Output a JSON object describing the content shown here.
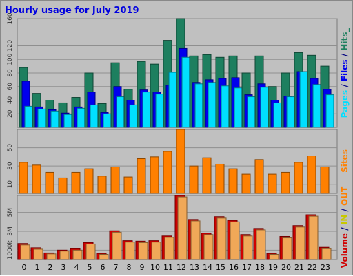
{
  "chart_data": [
    {
      "type": "bar",
      "title": "Hourly usage for July 2019",
      "categories": [
        "0",
        "1",
        "2",
        "3",
        "4",
        "5",
        "6",
        "7",
        "8",
        "9",
        "10",
        "11",
        "12",
        "13",
        "14",
        "15",
        "16",
        "17",
        "18",
        "19",
        "20",
        "21",
        "22",
        "23"
      ],
      "ylim": [
        0,
        160
      ],
      "yticks": [
        "20",
        "40",
        "60",
        "80",
        "100",
        "120",
        "160"
      ],
      "grid": true,
      "series": [
        {
          "name": "Hits",
          "color": "#1e7f5f",
          "values": [
            88,
            50,
            40,
            36,
            44,
            80,
            35,
            95,
            56,
            97,
            93,
            128,
            160,
            105,
            107,
            103,
            105,
            80,
            105,
            60,
            80,
            110,
            106,
            90
          ]
        },
        {
          "name": "Files",
          "color": "#0000ee",
          "values": [
            68,
            30,
            26,
            21,
            30,
            52,
            22,
            60,
            40,
            55,
            52,
            62,
            116,
            66,
            70,
            72,
            73,
            48,
            64,
            40,
            46,
            82,
            72,
            56
          ]
        },
        {
          "name": "Pages",
          "color": "#00dfff",
          "values": [
            31,
            27,
            24,
            19,
            28,
            33,
            20,
            45,
            33,
            52,
            49,
            81,
            103,
            64,
            66,
            61,
            58,
            45,
            59,
            36,
            45,
            82,
            63,
            48
          ]
        }
      ],
      "right_labels": [
        {
          "text": "Pages",
          "color": "#00dfff"
        },
        {
          "text": " / ",
          "color": "#000080"
        },
        {
          "text": "Files",
          "color": "#0000ee"
        },
        {
          "text": " / ",
          "color": "#000080"
        },
        {
          "text": "Hits",
          "color": "#1e7f5f"
        },
        {
          "text": "_",
          "color": "#1e7f5f"
        }
      ]
    },
    {
      "type": "bar",
      "categories": [
        "0",
        "1",
        "2",
        "3",
        "4",
        "5",
        "6",
        "7",
        "8",
        "9",
        "10",
        "11",
        "12",
        "13",
        "14",
        "15",
        "16",
        "17",
        "18",
        "19",
        "20",
        "21",
        "22",
        "23"
      ],
      "ylim": [
        0,
        70
      ],
      "yticks": [
        "10",
        "30",
        "50"
      ],
      "grid": true,
      "series": [
        {
          "name": "Sites",
          "color": "#ff8000",
          "values": [
            34,
            31,
            23,
            17,
            23,
            27,
            19,
            29,
            18,
            38,
            40,
            46,
            70,
            30,
            39,
            32,
            27,
            21,
            37,
            21,
            23,
            34,
            41,
            29
          ]
        }
      ],
      "right_labels": [
        {
          "text": "Sites",
          "color": "#ff8000"
        }
      ]
    },
    {
      "type": "bar",
      "categories": [
        "0",
        "1",
        "2",
        "3",
        "4",
        "5",
        "6",
        "7",
        "8",
        "9",
        "10",
        "11",
        "12",
        "13",
        "14",
        "15",
        "16",
        "17",
        "18",
        "19",
        "20",
        "21",
        "22",
        "23"
      ],
      "ylim": [
        0,
        6.8
      ],
      "yticks": [
        "1000k",
        "3M",
        "5M"
      ],
      "grid": true,
      "series": [
        {
          "name": "IN",
          "color": "#d00000",
          "values": [
            1.7,
            1.25,
            0.7,
            1.0,
            1.15,
            1.8,
            0.65,
            3.05,
            2.0,
            1.95,
            2.0,
            2.5,
            6.8,
            4.25,
            2.8,
            4.55,
            4.15,
            2.65,
            3.3,
            0.65,
            2.45,
            3.6,
            4.75,
            1.3
          ]
        },
        {
          "name": "OUT",
          "color": "#f0a858",
          "values": [
            1.55,
            1.1,
            0.6,
            0.9,
            1.0,
            1.65,
            0.55,
            2.9,
            1.85,
            1.8,
            1.85,
            2.35,
            6.65,
            4.1,
            2.65,
            4.4,
            4.0,
            2.5,
            3.15,
            0.55,
            2.3,
            3.45,
            4.6,
            1.15
          ]
        }
      ],
      "right_labels": [
        {
          "text": "Volume",
          "color": "#d00000"
        },
        {
          "text": " / ",
          "color": "#000080"
        },
        {
          "text": "IN",
          "color": "#c8c800"
        },
        {
          "text": " / ",
          "color": "#000080"
        },
        {
          "text": "OUT",
          "color": "#ff8000"
        }
      ]
    }
  ]
}
